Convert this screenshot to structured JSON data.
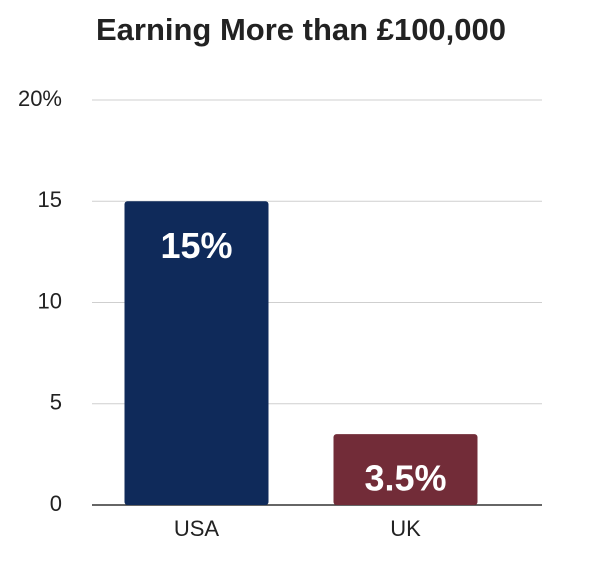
{
  "chart_data": {
    "type": "bar",
    "title": "Earning More than £100,000",
    "categories": [
      "USA",
      "UK"
    ],
    "series": [
      {
        "name": null,
        "colors": [
          "#0f2a5a",
          "#722c38"
        ],
        "values": [
          15,
          3.5
        ],
        "value_labels": [
          "15%",
          "3.5%"
        ]
      }
    ],
    "ylim": [
      0,
      20
    ],
    "yticks": [
      0,
      5,
      10,
      15,
      {
        "value": 20,
        "label": "20%"
      }
    ],
    "grid": true
  }
}
